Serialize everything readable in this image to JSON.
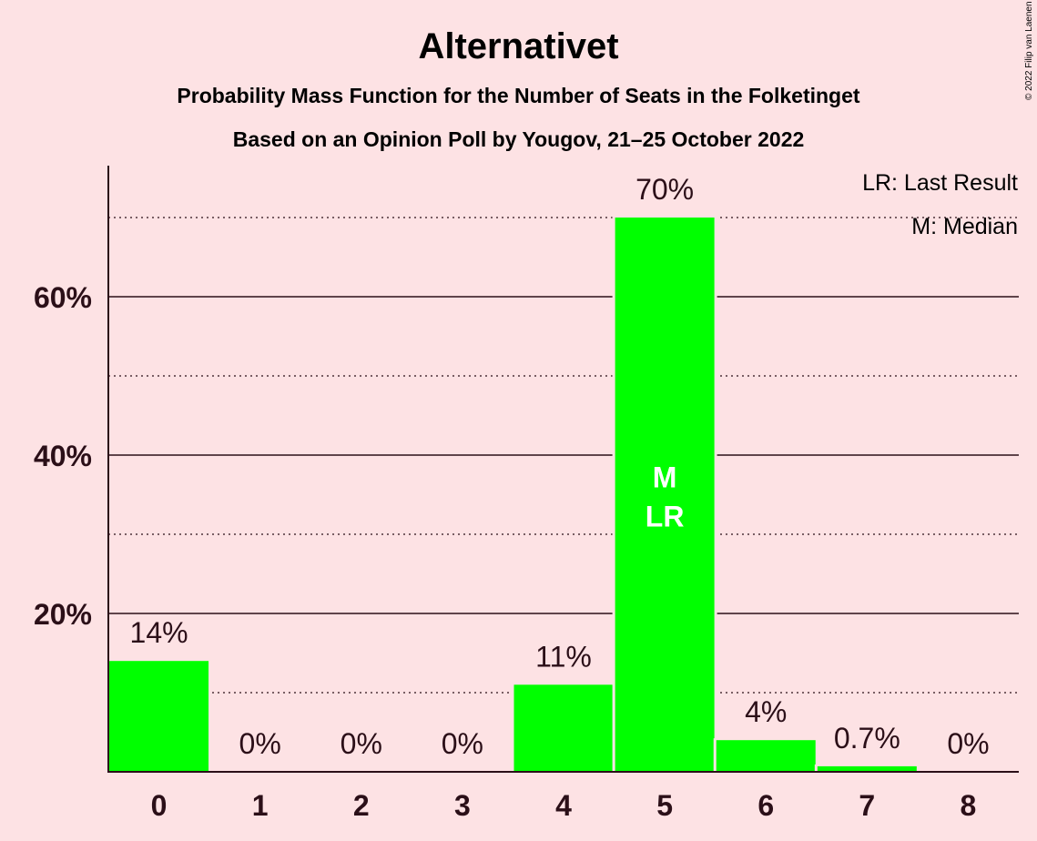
{
  "chart_data": {
    "type": "bar",
    "title": "Alternativet",
    "subtitle_lines": [
      "Probability Mass Function for the Number of Seats in the Folketinget",
      "Based on an Opinion Poll by Yougov, 21–25 October 2022"
    ],
    "categories": [
      "0",
      "1",
      "2",
      "3",
      "4",
      "5",
      "6",
      "7",
      "8"
    ],
    "values": [
      14,
      0,
      0,
      0,
      11,
      70,
      4,
      0.7,
      0
    ],
    "value_labels": [
      "14%",
      "0%",
      "0%",
      "0%",
      "11%",
      "70%",
      "4%",
      "0.7%",
      "0%"
    ],
    "ylim": [
      0,
      76.5
    ],
    "y_ticks": [
      20,
      40,
      60
    ],
    "y_tick_labels": [
      "20%",
      "40%",
      "60%"
    ],
    "minor_gridlines": [
      10,
      30,
      50,
      70
    ],
    "bar_color": "#00ff00",
    "background": "#fde2e4",
    "text_color": "#2b0f18",
    "median_index": 5,
    "last_result_index": 5,
    "markers": {
      "median": "M",
      "last_result": "LR"
    },
    "legend": {
      "placement": "top-right",
      "entries": [
        "LR: Last Result",
        "M: Median"
      ]
    },
    "copyright": "© 2022 Filip van Laenen"
  }
}
